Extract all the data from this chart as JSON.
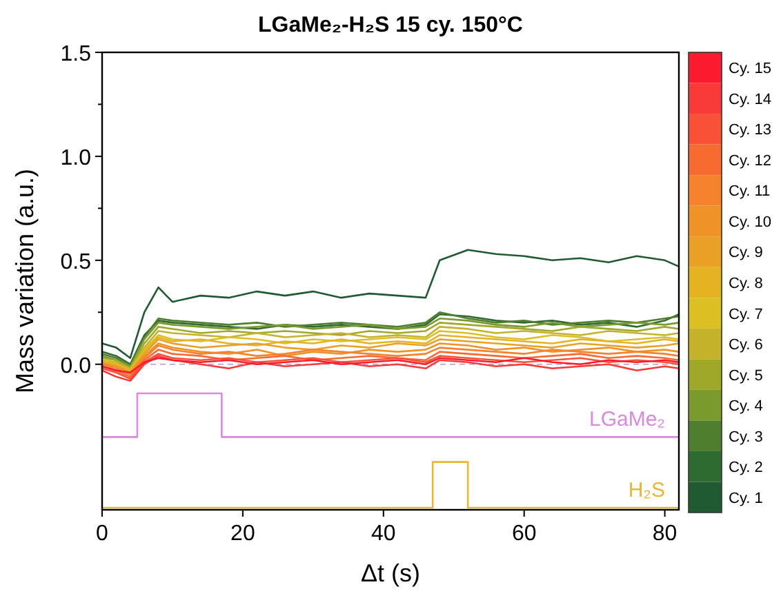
{
  "chart_data": {
    "type": "line",
    "title": "LGaMe₂-H₂S 15 cy. 150°C",
    "xlabel": "Δt (s)",
    "ylabel": "Mass variation (a.u.)",
    "x": [
      0,
      2,
      4,
      6,
      8,
      10,
      14,
      18,
      22,
      26,
      30,
      34,
      38,
      42,
      46,
      48,
      52,
      56,
      60,
      64,
      68,
      72,
      76,
      80,
      82
    ],
    "xlim": [
      0,
      82
    ],
    "xticks": [
      0,
      20,
      40,
      60,
      80
    ],
    "ylim": [
      -0.7,
      1.5
    ],
    "yticks": [
      {
        "value": 0,
        "label": "0.0"
      },
      {
        "value": 0.25,
        "label": null
      },
      0.5,
      {
        "value": 0.75,
        "label": null
      },
      {
        "value": 1,
        "label": "1.0"
      },
      {
        "value": 1.25,
        "label": null
      },
      1.5
    ],
    "grid": false,
    "legend": "right",
    "ref_lines": [
      {
        "axis": "y",
        "value": 0,
        "color": "#b0a0c0",
        "line_style": "dashed"
      }
    ],
    "series": [
      {
        "name": "Cy. 1",
        "color": "#1f5a32",
        "values": [
          0.1,
          0.08,
          0.03,
          0.25,
          0.37,
          0.3,
          0.33,
          0.32,
          0.35,
          0.33,
          0.35,
          0.32,
          0.34,
          0.33,
          0.32,
          0.5,
          0.55,
          0.53,
          0.52,
          0.5,
          0.51,
          0.49,
          0.52,
          0.5,
          0.47
        ]
      },
      {
        "name": "Cy. 2",
        "color": "#2e6b30",
        "values": [
          0.06,
          0.04,
          0.0,
          0.14,
          0.21,
          0.2,
          0.19,
          0.18,
          0.17,
          0.19,
          0.18,
          0.19,
          0.18,
          0.17,
          0.19,
          0.24,
          0.23,
          0.21,
          0.2,
          0.21,
          0.19,
          0.2,
          0.18,
          0.21,
          0.24
        ]
      },
      {
        "name": "Cy. 3",
        "color": "#4f7f2e",
        "values": [
          0.05,
          0.03,
          -0.01,
          0.13,
          0.22,
          0.21,
          0.2,
          0.19,
          0.2,
          0.18,
          0.19,
          0.2,
          0.19,
          0.18,
          0.2,
          0.25,
          0.22,
          0.2,
          0.21,
          0.19,
          0.2,
          0.21,
          0.2,
          0.22,
          0.23
        ]
      },
      {
        "name": "Cy. 4",
        "color": "#7a9a2e",
        "values": [
          0.04,
          0.02,
          -0.01,
          0.12,
          0.2,
          0.19,
          0.18,
          0.17,
          0.18,
          0.19,
          0.17,
          0.18,
          0.19,
          0.17,
          0.18,
          0.22,
          0.21,
          0.19,
          0.18,
          0.2,
          0.18,
          0.19,
          0.2,
          0.19,
          0.2
        ]
      },
      {
        "name": "Cy. 5",
        "color": "#a0a82a",
        "values": [
          0.03,
          0.02,
          -0.02,
          0.1,
          0.18,
          0.17,
          0.15,
          0.16,
          0.15,
          0.16,
          0.15,
          0.14,
          0.16,
          0.15,
          0.16,
          0.2,
          0.19,
          0.18,
          0.17,
          0.16,
          0.18,
          0.17,
          0.16,
          0.18,
          0.17
        ]
      },
      {
        "name": "Cy. 6",
        "color": "#c4b22a",
        "values": [
          0.02,
          0.01,
          -0.02,
          0.08,
          0.16,
          0.15,
          0.14,
          0.13,
          0.15,
          0.13,
          0.14,
          0.15,
          0.13,
          0.14,
          0.13,
          0.18,
          0.17,
          0.15,
          0.16,
          0.15,
          0.14,
          0.16,
          0.15,
          0.14,
          0.15
        ]
      },
      {
        "name": "Cy. 7",
        "color": "#dcc023",
        "values": [
          0.02,
          0.0,
          -0.03,
          0.07,
          0.14,
          0.12,
          0.11,
          0.13,
          0.12,
          0.1,
          0.12,
          0.11,
          0.12,
          0.13,
          0.12,
          0.16,
          0.15,
          0.13,
          0.12,
          0.14,
          0.13,
          0.11,
          0.12,
          0.13,
          0.12
        ]
      },
      {
        "name": "Cy. 8",
        "color": "#e5b222",
        "values": [
          0.01,
          0.0,
          -0.03,
          0.06,
          0.13,
          0.11,
          0.12,
          0.1,
          0.09,
          0.11,
          0.1,
          0.12,
          0.1,
          0.11,
          0.1,
          0.14,
          0.13,
          0.12,
          0.11,
          0.1,
          0.12,
          0.11,
          0.1,
          0.12,
          0.11
        ]
      },
      {
        "name": "Cy. 9",
        "color": "#eaa024",
        "values": [
          0.01,
          -0.01,
          -0.04,
          0.05,
          0.12,
          0.1,
          0.08,
          0.09,
          0.1,
          0.08,
          0.07,
          0.09,
          0.08,
          0.1,
          0.09,
          0.12,
          0.11,
          0.1,
          0.09,
          0.08,
          0.1,
          0.09,
          0.08,
          0.09,
          0.1
        ]
      },
      {
        "name": "Cy. 10",
        "color": "#ef9228",
        "values": [
          0.0,
          -0.01,
          -0.04,
          0.04,
          0.1,
          0.08,
          0.06,
          0.05,
          0.07,
          0.04,
          0.06,
          0.05,
          0.07,
          0.06,
          0.07,
          0.1,
          0.09,
          0.07,
          0.08,
          0.06,
          0.07,
          0.08,
          0.06,
          0.07,
          0.06
        ]
      },
      {
        "name": "Cy. 11",
        "color": "#f5822c",
        "values": [
          0.0,
          -0.02,
          -0.05,
          0.03,
          0.09,
          0.07,
          0.05,
          0.06,
          0.04,
          0.05,
          0.07,
          0.06,
          0.05,
          0.04,
          0.05,
          0.08,
          0.07,
          0.06,
          0.05,
          0.07,
          0.06,
          0.05,
          0.06,
          0.05,
          0.04
        ]
      },
      {
        "name": "Cy. 12",
        "color": "#f76a30",
        "values": [
          -0.01,
          -0.03,
          -0.06,
          0.02,
          0.07,
          0.05,
          0.04,
          0.02,
          0.03,
          0.04,
          0.02,
          0.03,
          0.04,
          0.03,
          0.02,
          0.06,
          0.05,
          0.04,
          0.03,
          0.04,
          0.05,
          0.03,
          0.04,
          0.03,
          0.02
        ]
      },
      {
        "name": "Cy. 13",
        "color": "#f95038",
        "values": [
          -0.02,
          -0.04,
          -0.07,
          0.01,
          0.05,
          0.03,
          0.02,
          0.03,
          0.01,
          0.02,
          0.03,
          0.01,
          0.02,
          0.03,
          0.01,
          0.04,
          0.03,
          0.02,
          0.01,
          0.02,
          0.03,
          0.01,
          0.02,
          0.01,
          0.0
        ]
      },
      {
        "name": "Cy. 14",
        "color": "#fa3a38",
        "values": [
          -0.03,
          -0.06,
          -0.08,
          0.0,
          0.04,
          0.02,
          0.0,
          -0.02,
          0.01,
          -0.01,
          0.0,
          0.01,
          -0.01,
          0.0,
          -0.02,
          0.02,
          0.01,
          -0.01,
          0.0,
          -0.02,
          -0.01,
          0.0,
          -0.03,
          -0.01,
          -0.02
        ]
      },
      {
        "name": "Cy. 15",
        "color": "#fc1a2e",
        "values": [
          -0.01,
          -0.03,
          -0.04,
          0.01,
          0.03,
          0.02,
          0.01,
          0.02,
          0.0,
          0.01,
          0.02,
          0.0,
          0.01,
          0.02,
          0.0,
          0.03,
          0.02,
          0.01,
          0.03,
          0.01,
          0.0,
          0.02,
          0.01,
          0.02,
          0.01
        ]
      },
      {
        "name": "LGaMe₂",
        "type": "step",
        "color": "#dd88dd",
        "x": [
          0,
          5,
          17,
          82
        ],
        "values": [
          -0.35,
          -0.14,
          -0.35,
          -0.35
        ]
      },
      {
        "name": "H₂S",
        "type": "step",
        "color": "#e8b830",
        "x": [
          0,
          47,
          52,
          82
        ],
        "values": [
          -0.69,
          -0.47,
          -0.69,
          -0.69
        ]
      }
    ]
  }
}
